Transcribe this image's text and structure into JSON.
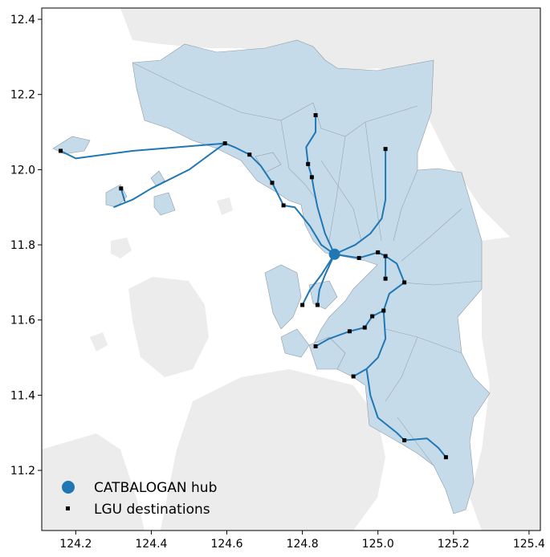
{
  "figure": {
    "x_ticks": [
      "124.2",
      "124.4",
      "124.6",
      "124.8",
      "125.0",
      "125.2",
      "125.4"
    ],
    "y_ticks": [
      "11.2",
      "11.4",
      "11.6",
      "11.8",
      "12.0",
      "12.2",
      "12.4"
    ]
  },
  "legend": {
    "location": "lower-left",
    "hub_label": "CATBALOGAN hub",
    "lgu_label": "LGU destinations"
  },
  "colors": {
    "land_background": "#ececec",
    "province_fill": "#c6dbea",
    "boundary_line": "#8e9aa4",
    "route_line": "#1f77b4",
    "hub_marker": "#1f77b4",
    "lgu_marker": "#000000"
  },
  "chart_data": {
    "type": "scatter",
    "xlim": [
      124.11,
      125.43
    ],
    "ylim": [
      11.04,
      12.43
    ],
    "grid": false,
    "hub": {
      "name": "CATBALOGAN hub",
      "lon": 124.885,
      "lat": 11.775
    },
    "lgu_destinations": [
      {
        "lon": 124.16,
        "lat": 12.05
      },
      {
        "lon": 124.32,
        "lat": 11.95
      },
      {
        "lon": 124.595,
        "lat": 12.07
      },
      {
        "lon": 124.66,
        "lat": 12.04
      },
      {
        "lon": 124.72,
        "lat": 11.965
      },
      {
        "lon": 124.75,
        "lat": 11.905
      },
      {
        "lon": 124.815,
        "lat": 12.015
      },
      {
        "lon": 124.825,
        "lat": 11.98
      },
      {
        "lon": 124.835,
        "lat": 12.145
      },
      {
        "lon": 125.02,
        "lat": 12.055
      },
      {
        "lon": 124.95,
        "lat": 11.765
      },
      {
        "lon": 125.0,
        "lat": 11.78
      },
      {
        "lon": 125.02,
        "lat": 11.77
      },
      {
        "lon": 125.02,
        "lat": 11.71
      },
      {
        "lon": 125.07,
        "lat": 11.7
      },
      {
        "lon": 124.8,
        "lat": 11.64
      },
      {
        "lon": 124.84,
        "lat": 11.64
      },
      {
        "lon": 124.985,
        "lat": 11.61
      },
      {
        "lon": 125.015,
        "lat": 11.625
      },
      {
        "lon": 124.965,
        "lat": 11.58
      },
      {
        "lon": 124.925,
        "lat": 11.57
      },
      {
        "lon": 124.835,
        "lat": 11.53
      },
      {
        "lon": 124.935,
        "lat": 11.45
      },
      {
        "lon": 125.07,
        "lat": 11.28
      },
      {
        "lon": 125.18,
        "lat": 11.235
      }
    ],
    "routes": [
      [
        [
          124.885,
          11.775
        ],
        [
          124.85,
          11.8
        ],
        [
          124.82,
          11.85
        ],
        [
          124.78,
          11.9
        ],
        [
          124.75,
          11.905
        ]
      ],
      [
        [
          124.75,
          11.905
        ],
        [
          124.72,
          11.965
        ]
      ],
      [
        [
          124.72,
          11.965
        ],
        [
          124.69,
          12.01
        ],
        [
          124.66,
          12.04
        ]
      ],
      [
        [
          124.66,
          12.04
        ],
        [
          124.62,
          12.06
        ],
        [
          124.595,
          12.07
        ]
      ],
      [
        [
          124.595,
          12.07
        ],
        [
          124.35,
          12.05
        ],
        [
          124.2,
          12.03
        ],
        [
          124.16,
          12.05
        ]
      ],
      [
        [
          124.595,
          12.07
        ],
        [
          124.5,
          12.0
        ],
        [
          124.4,
          11.95
        ],
        [
          124.35,
          11.92
        ],
        [
          124.3,
          11.9
        ]
      ],
      [
        [
          124.33,
          11.915
        ],
        [
          124.32,
          11.95
        ]
      ],
      [
        [
          124.885,
          11.775
        ],
        [
          124.86,
          11.83
        ],
        [
          124.84,
          11.9
        ],
        [
          124.83,
          11.95
        ],
        [
          124.825,
          11.98
        ]
      ],
      [
        [
          124.825,
          11.98
        ],
        [
          124.815,
          12.015
        ]
      ],
      [
        [
          124.815,
          12.015
        ],
        [
          124.81,
          12.06
        ],
        [
          124.835,
          12.1
        ],
        [
          124.835,
          12.145
        ]
      ],
      [
        [
          124.885,
          11.775
        ],
        [
          124.95,
          11.765
        ]
      ],
      [
        [
          124.95,
          11.765
        ],
        [
          125.0,
          11.78
        ]
      ],
      [
        [
          125.0,
          11.78
        ],
        [
          125.02,
          11.77
        ]
      ],
      [
        [
          124.885,
          11.775
        ],
        [
          124.94,
          11.8
        ],
        [
          124.98,
          11.83
        ],
        [
          125.01,
          11.87
        ],
        [
          125.02,
          11.92
        ],
        [
          125.02,
          11.98
        ],
        [
          125.02,
          12.055
        ]
      ],
      [
        [
          125.02,
          11.77
        ],
        [
          125.05,
          11.75
        ],
        [
          125.07,
          11.7
        ]
      ],
      [
        [
          125.02,
          11.77
        ],
        [
          125.02,
          11.71
        ]
      ],
      [
        [
          125.07,
          11.7
        ],
        [
          125.03,
          11.67
        ],
        [
          125.015,
          11.625
        ]
      ],
      [
        [
          125.015,
          11.625
        ],
        [
          124.985,
          11.61
        ]
      ],
      [
        [
          124.985,
          11.61
        ],
        [
          124.965,
          11.58
        ]
      ],
      [
        [
          124.965,
          11.58
        ],
        [
          124.925,
          11.57
        ]
      ],
      [
        [
          124.925,
          11.57
        ],
        [
          124.87,
          11.55
        ],
        [
          124.835,
          11.53
        ]
      ],
      [
        [
          124.885,
          11.775
        ],
        [
          124.85,
          11.72
        ],
        [
          124.82,
          11.68
        ],
        [
          124.8,
          11.64
        ]
      ],
      [
        [
          124.885,
          11.775
        ],
        [
          124.86,
          11.72
        ],
        [
          124.845,
          11.68
        ],
        [
          124.84,
          11.64
        ]
      ],
      [
        [
          125.015,
          11.625
        ],
        [
          125.02,
          11.55
        ],
        [
          125.0,
          11.5
        ],
        [
          124.97,
          11.47
        ],
        [
          124.935,
          11.45
        ]
      ],
      [
        [
          124.97,
          11.47
        ],
        [
          124.98,
          11.4
        ],
        [
          125.0,
          11.34
        ],
        [
          125.05,
          11.3
        ],
        [
          125.07,
          11.28
        ]
      ],
      [
        [
          125.07,
          11.28
        ],
        [
          125.13,
          11.285
        ],
        [
          125.16,
          11.26
        ],
        [
          125.18,
          11.235
        ]
      ]
    ]
  }
}
